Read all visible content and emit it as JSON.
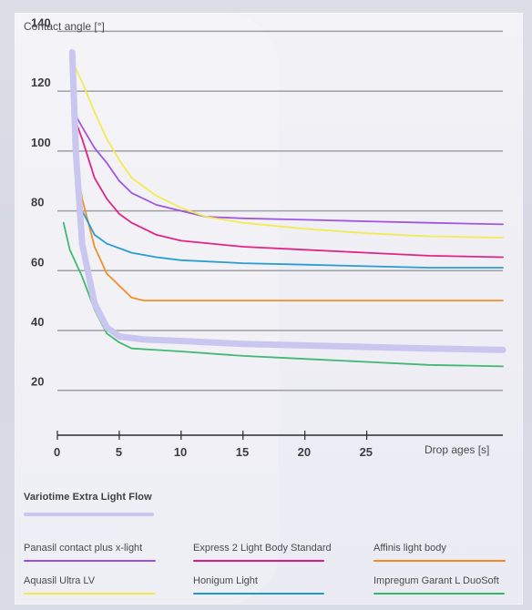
{
  "chart_data": {
    "type": "line",
    "ylabel": "Contact angle [°]",
    "xlabel": "Drop ages [s]",
    "ylim": [
      5,
      145
    ],
    "xlim": [
      0,
      36
    ],
    "yticks": [
      20,
      40,
      60,
      80,
      100,
      120,
      140
    ],
    "xticks": [
      0,
      5,
      10,
      15,
      20,
      25
    ],
    "grid": true,
    "legend_position": "bottom",
    "series": [
      {
        "name": "Variotime Extra Light Flow",
        "color": "#c9c7ef",
        "highlight": true,
        "points": [
          [
            1.2,
            133
          ],
          [
            1.3,
            121
          ],
          [
            1.5,
            99
          ],
          [
            2.0,
            69
          ],
          [
            3.0,
            49
          ],
          [
            4.0,
            41
          ],
          [
            5.0,
            38
          ],
          [
            7.0,
            37
          ],
          [
            10.0,
            36.5
          ],
          [
            15.0,
            35.5
          ],
          [
            20.0,
            35
          ],
          [
            25.0,
            34.5
          ],
          [
            30.0,
            34
          ],
          [
            36.0,
            33.5
          ]
        ]
      },
      {
        "name": "Panasil contact plus x-light",
        "color": "#9b4de0",
        "points": [
          [
            1.2,
            114
          ],
          [
            2.0,
            108
          ],
          [
            3.0,
            101
          ],
          [
            4.0,
            96
          ],
          [
            5.0,
            90
          ],
          [
            6.0,
            86
          ],
          [
            8.0,
            82
          ],
          [
            10.0,
            80
          ],
          [
            12.0,
            78
          ],
          [
            15.0,
            77.5
          ],
          [
            20.0,
            77
          ],
          [
            25.0,
            76.5
          ],
          [
            30.0,
            76
          ],
          [
            36.0,
            75.5
          ]
        ]
      },
      {
        "name": "Express 2 Light Body Standard",
        "color": "#e0187f",
        "points": [
          [
            1.2,
            113
          ],
          [
            2.0,
            104
          ],
          [
            3.0,
            91
          ],
          [
            4.0,
            84
          ],
          [
            5.0,
            79
          ],
          [
            6.0,
            76
          ],
          [
            8.0,
            72
          ],
          [
            10.0,
            70
          ],
          [
            15.0,
            68
          ],
          [
            20.0,
            67
          ],
          [
            25.0,
            66
          ],
          [
            30.0,
            65
          ],
          [
            36.0,
            64.5
          ]
        ]
      },
      {
        "name": "Affinis light body",
        "color": "#f28a1e",
        "points": [
          [
            1.2,
            112
          ],
          [
            1.5,
            97
          ],
          [
            2.0,
            84
          ],
          [
            3.0,
            68
          ],
          [
            4.0,
            59
          ],
          [
            5.0,
            55
          ],
          [
            6.0,
            51
          ],
          [
            7.0,
            50
          ],
          [
            10.0,
            50
          ],
          [
            15.0,
            50
          ],
          [
            20.0,
            50
          ],
          [
            25.0,
            50
          ],
          [
            30.0,
            50
          ],
          [
            36.0,
            50
          ]
        ]
      },
      {
        "name": "Aquasil Ultra LV",
        "color": "#f1ea4a",
        "points": [
          [
            1.2,
            130
          ],
          [
            2.0,
            123
          ],
          [
            3.0,
            113
          ],
          [
            4.0,
            104
          ],
          [
            5.0,
            97
          ],
          [
            6.0,
            91
          ],
          [
            8.0,
            85
          ],
          [
            10.0,
            81
          ],
          [
            12.0,
            78
          ],
          [
            15.0,
            76
          ],
          [
            20.0,
            74
          ],
          [
            25.0,
            72.5
          ],
          [
            30.0,
            71.5
          ],
          [
            36.0,
            71
          ]
        ]
      },
      {
        "name": "Honigum Light",
        "color": "#1d98d0",
        "points": [
          [
            1.2,
            116
          ],
          [
            1.6,
            100
          ],
          [
            2.0,
            80
          ],
          [
            3.0,
            72
          ],
          [
            4.0,
            69
          ],
          [
            5.0,
            67.5
          ],
          [
            6.0,
            66
          ],
          [
            8.0,
            64.5
          ],
          [
            10.0,
            63.5
          ],
          [
            15.0,
            62.5
          ],
          [
            20.0,
            62
          ],
          [
            25.0,
            61.5
          ],
          [
            30.0,
            61
          ],
          [
            36.0,
            61
          ]
        ]
      },
      {
        "name": "Impregum Garant L DuoSoft",
        "color": "#37b56b",
        "points": [
          [
            0.5,
            76
          ],
          [
            1.0,
            67
          ],
          [
            2.0,
            58
          ],
          [
            3.0,
            47
          ],
          [
            4.0,
            39
          ],
          [
            5.0,
            36
          ],
          [
            6.0,
            34
          ],
          [
            8.0,
            33.5
          ],
          [
            10.0,
            33
          ],
          [
            15.0,
            31.5
          ],
          [
            20.0,
            30.5
          ],
          [
            25.0,
            29.5
          ],
          [
            30.0,
            28.5
          ],
          [
            36.0,
            28
          ]
        ]
      }
    ]
  }
}
